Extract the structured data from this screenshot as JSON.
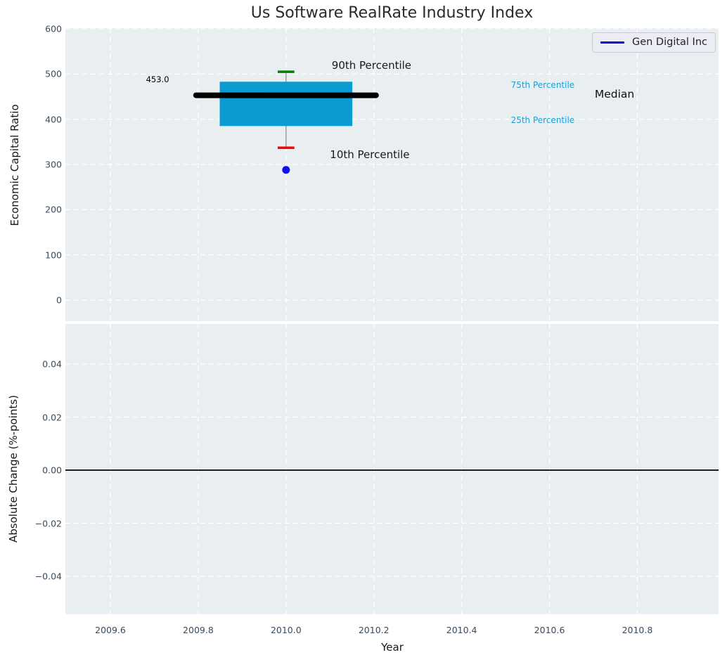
{
  "figure_title": "Us Software RealRate Industry Index",
  "styles": {
    "plot_bg": "#e9eef1",
    "grid_color": "#ffffff",
    "tick_color": "#3b4a5c",
    "box_color": "#0a9bd0",
    "median_color": "#000000",
    "p90_cap_color": "#008000",
    "p10_cap_color": "#ff0000",
    "whisker_color": "#888888",
    "marker_color": "#0f0ff0",
    "legend_line_color": "#0000dd",
    "zero_line_color": "#000000"
  },
  "chart_data": [
    {
      "type": "box",
      "title": "Us Software RealRate Industry Index",
      "ylabel": "Economic Capital Ratio",
      "xlabel": "Year",
      "xlim": [
        2009.4975,
        2010.985
      ],
      "ylim": [
        -46.6,
        601.6
      ],
      "xticks": [
        2009.6,
        2009.8,
        2010.0,
        2010.2,
        2010.4,
        2010.6,
        2010.8
      ],
      "yticks": [
        0,
        100,
        200,
        300,
        400,
        500,
        600
      ],
      "grid": true,
      "legend": [
        {
          "label": "Gen Digital Inc",
          "color": "#0000dd",
          "position": "upper right"
        }
      ],
      "series": [
        {
          "name": "industry-percentile-box",
          "x": 2010.0,
          "p10": 337,
          "p25": 385,
          "median": 453.0,
          "p75": 483,
          "p90": 505,
          "box_halfwidth": 0.151,
          "median_halfwidth": 0.205,
          "cap_halfwidth": 0.019
        },
        {
          "name": "Gen Digital Inc",
          "x": 2010.0,
          "y": 288,
          "marker": "circle"
        }
      ],
      "annotations": [
        {
          "text": "453.0",
          "x": 2009.681,
          "y": 488,
          "color": "#000000",
          "size": 11.5
        },
        {
          "text": "90th Percentile",
          "x": 2010.104,
          "y": 519,
          "color": "#1a1a1a",
          "size": 15
        },
        {
          "text": "10th Percentile",
          "x": 2010.1,
          "y": 322,
          "color": "#1a1a1a",
          "size": 15
        },
        {
          "text": "75th Percentile",
          "x": 2010.512,
          "y": 475,
          "color": "#1d9fd3",
          "size": 12
        },
        {
          "text": "25th Percentile",
          "x": 2010.512,
          "y": 398,
          "color": "#1d9fd3",
          "size": 12
        },
        {
          "text": "Median",
          "x": 2010.703,
          "y": 455,
          "color": "#111111",
          "size": 15.5
        }
      ]
    },
    {
      "type": "line",
      "ylabel": "Absolute Change (%-points)",
      "xlabel": "Year",
      "xlim": [
        2009.4975,
        2010.985
      ],
      "ylim": [
        -0.0543,
        0.0551
      ],
      "xticks": [
        2009.6,
        2009.8,
        2010.0,
        2010.2,
        2010.4,
        2010.6,
        2010.8
      ],
      "yticks": [
        -0.04,
        -0.02,
        0.0,
        0.02,
        0.04
      ],
      "grid": true,
      "zero_line": {
        "y": 0.0
      }
    }
  ]
}
